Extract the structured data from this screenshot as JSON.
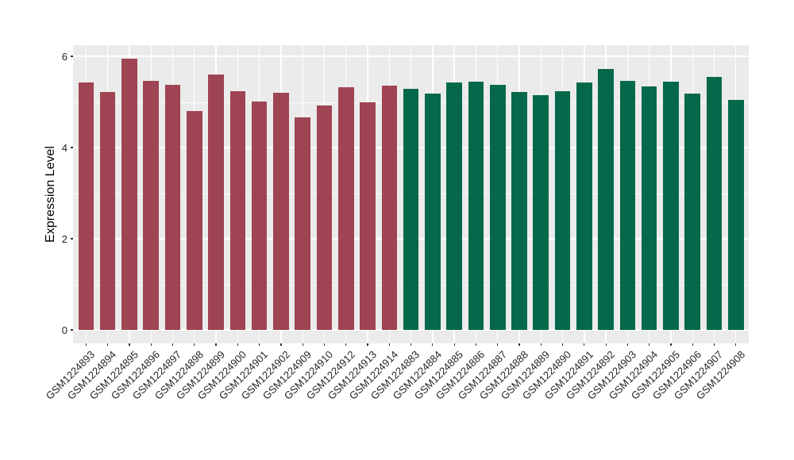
{
  "chart_data": {
    "type": "bar",
    "title": "",
    "xlabel": "",
    "ylabel": "Expression Level",
    "ylim": [
      0,
      6.24
    ],
    "yticks": [
      0,
      2,
      4,
      6
    ],
    "yminorticks": [
      1,
      3,
      5
    ],
    "grid": "on",
    "legend": "none",
    "panel_bg": "#EBEBEB",
    "grid_color": "#FFFFFF",
    "series": [
      {
        "name": "group-maroon",
        "color": "#9E4452",
        "categories": [
          "GSM1224893",
          "GSM1224894",
          "GSM1224895",
          "GSM1224896",
          "GSM1224897",
          "GSM1224898",
          "GSM1224899",
          "GSM1224900",
          "GSM1224901",
          "GSM1224902",
          "GSM1224909",
          "GSM1224910",
          "GSM1224912",
          "GSM1224913",
          "GSM1224914"
        ],
        "values": [
          5.43,
          5.22,
          5.94,
          5.46,
          5.37,
          4.8,
          5.6,
          5.23,
          5.01,
          5.2,
          4.66,
          4.92,
          5.32,
          5.0,
          5.36
        ]
      },
      {
        "name": "group-green",
        "color": "#05684A",
        "categories": [
          "GSM1224883",
          "GSM1224884",
          "GSM1224885",
          "GSM1224886",
          "GSM1224887",
          "GSM1224888",
          "GSM1224889",
          "GSM1224890",
          "GSM1224891",
          "GSM1224892",
          "GSM1224903",
          "GSM1224904",
          "GSM1224905",
          "GSM1224906",
          "GSM1224907",
          "GSM1224908"
        ],
        "values": [
          5.29,
          5.18,
          5.42,
          5.44,
          5.37,
          5.21,
          5.15,
          5.23,
          5.42,
          5.72,
          5.46,
          5.34,
          5.44,
          5.19,
          5.55,
          5.04
        ]
      }
    ]
  }
}
